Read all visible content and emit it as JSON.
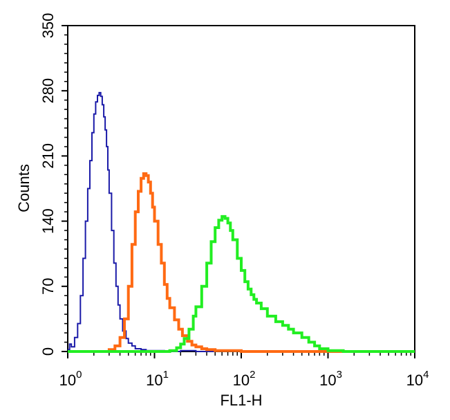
{
  "chart_data": {
    "type": "line",
    "xlabel": "FL1-H",
    "ylabel": "Counts",
    "xscale": "log",
    "xlim": [
      1,
      10000
    ],
    "ylim": [
      0,
      350
    ],
    "grid": false,
    "legend": "none",
    "y_ticks": [
      "0",
      "70",
      "140",
      "210",
      "280",
      "350"
    ],
    "x_ticks": [
      {
        "base": "10",
        "exp": "0"
      },
      {
        "base": "10",
        "exp": "1"
      },
      {
        "base": "10",
        "exp": "2"
      },
      {
        "base": "10",
        "exp": "3"
      },
      {
        "base": "10",
        "exp": "4"
      }
    ],
    "series": [
      {
        "color": "#1a1aa8",
        "x": [
          1.0,
          1.05,
          1.1,
          1.2,
          1.3,
          1.4,
          1.5,
          1.6,
          1.7,
          1.8,
          1.9,
          2.0,
          2.1,
          2.2,
          2.3,
          2.4,
          2.5,
          2.6,
          2.7,
          2.8,
          2.9,
          3.0,
          3.2,
          3.4,
          3.6,
          3.8,
          4.0,
          4.3,
          4.7,
          5.0,
          5.5,
          6.0,
          7.0,
          8.0,
          10,
          13,
          16,
          20,
          30,
          50
        ],
        "y": [
          2,
          8,
          5,
          15,
          30,
          60,
          100,
          140,
          175,
          205,
          235,
          255,
          268,
          275,
          278,
          274,
          265,
          252,
          238,
          220,
          195,
          170,
          130,
          95,
          70,
          50,
          35,
          22,
          14,
          9,
          6,
          3,
          2,
          1,
          1,
          0,
          0,
          1,
          0,
          0
        ]
      },
      {
        "color": "#ff6a13",
        "x": [
          1.0,
          2.0,
          3.0,
          3.5,
          4.0,
          4.5,
          5.0,
          5.5,
          6.0,
          6.5,
          7.0,
          7.5,
          8.0,
          8.5,
          9.0,
          9.5,
          10,
          11,
          12,
          13,
          14,
          15,
          17,
          19,
          21,
          24,
          27,
          30,
          35,
          40,
          50,
          70,
          100,
          200,
          500,
          1000,
          10000
        ],
        "y": [
          0,
          0,
          2,
          6,
          15,
          35,
          70,
          115,
          150,
          172,
          186,
          191,
          189,
          182,
          170,
          155,
          140,
          115,
          95,
          72,
          57,
          47,
          34,
          24,
          17,
          11,
          7,
          5,
          3,
          2,
          1,
          1,
          0,
          0,
          0,
          0,
          0
        ]
      },
      {
        "color": "#22ee22",
        "x": [
          1.0,
          10,
          15,
          18,
          20,
          22,
          25,
          28,
          30,
          35,
          40,
          45,
          50,
          55,
          60,
          65,
          70,
          75,
          80,
          90,
          100,
          110,
          120,
          130,
          140,
          150,
          170,
          200,
          250,
          300,
          350,
          400,
          500,
          600,
          700,
          800,
          1000,
          1500,
          10000
        ],
        "y": [
          0,
          0,
          1,
          4,
          8,
          14,
          24,
          38,
          48,
          70,
          95,
          118,
          133,
          141,
          145,
          143,
          138,
          130,
          120,
          100,
          87,
          75,
          67,
          61,
          56,
          52,
          46,
          38,
          32,
          28,
          24,
          20,
          15,
          10,
          6,
          3,
          1,
          0,
          0
        ]
      }
    ]
  }
}
